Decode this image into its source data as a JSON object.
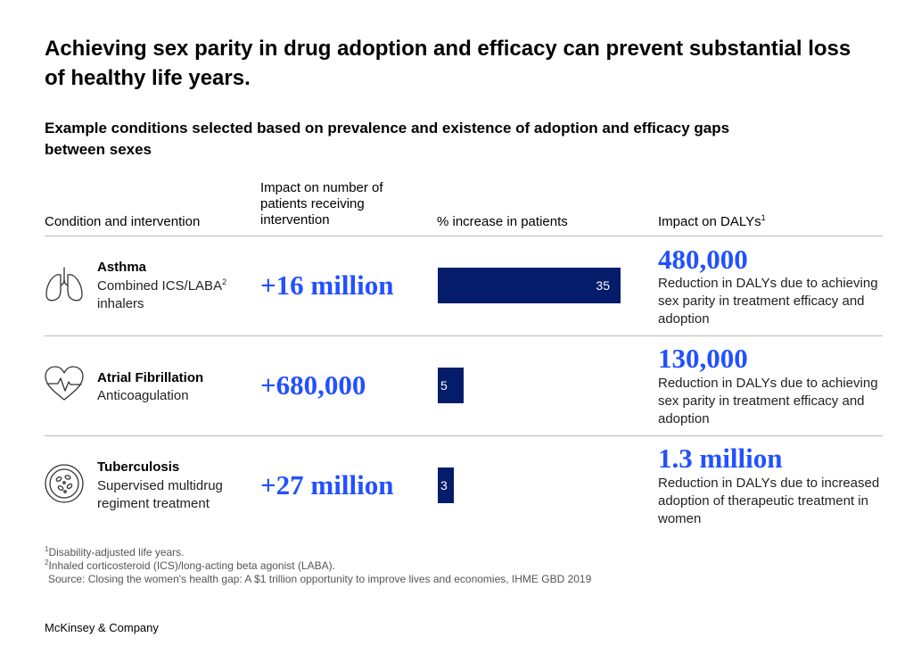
{
  "title": "Achieving sex parity in drug adoption and efficacy can prevent substantial loss of healthy life years.",
  "subtitle": "Example conditions selected based on prevalence and existence of adoption and efficacy gaps between sexes",
  "columns": {
    "condition": "Condition and intervention",
    "patients": "Impact on number of patients receiving intervention",
    "increase": "% increase in patients",
    "dalys": "Impact on DALYs",
    "dalys_note": "1"
  },
  "rows": [
    {
      "icon": "lungs-icon",
      "condition": "Asthma",
      "intervention": "Combined ICS/LABA",
      "intervention_note": "2",
      "intervention_rest": "inhalers",
      "impact": "+16 million",
      "increase_label": "35",
      "daly": "480,000",
      "daly_desc": "Reduction in DALYs due to achieving sex parity in treatment efficacy and adoption"
    },
    {
      "icon": "heart-pulse-icon",
      "condition": "Atrial Fibrillation",
      "intervention": "Anticoagulation",
      "intervention_note": "",
      "intervention_rest": "",
      "impact": "+680,000",
      "increase_label": "5",
      "daly": "130,000",
      "daly_desc": "Reduction in DALYs due to achieving sex parity in treatment efficacy and adoption"
    },
    {
      "icon": "bacteria-icon",
      "condition": "Tuberculosis",
      "intervention": "Supervised multidrug regiment treatment",
      "intervention_note": "",
      "intervention_rest": "",
      "impact": "+27 million",
      "increase_label": "3",
      "daly": "1.3 million",
      "daly_desc": "Reduction in DALYs due to increased adoption of therapeutic treatment in women"
    }
  ],
  "chart_data": {
    "type": "bar",
    "categories": [
      "Asthma",
      "Atrial Fibrillation",
      "Tuberculosis"
    ],
    "values": [
      35,
      5,
      3
    ],
    "xlabel": "% increase in patients",
    "ylabel": "",
    "colors": {
      "bar": "#051c6b",
      "accent": "#2251ff"
    }
  },
  "footnotes": {
    "note1_mark": "1",
    "note1": "Disability-adjusted life years.",
    "note2_mark": "2",
    "note2": "Inhaled corticosteroid (ICS)/long-acting beta agonist (LABA).",
    "source": "Source: Closing the women's health gap: A $1 trillion opportunity to improve lives and economies, IHME GBD 2019"
  },
  "brand": "McKinsey & Company"
}
